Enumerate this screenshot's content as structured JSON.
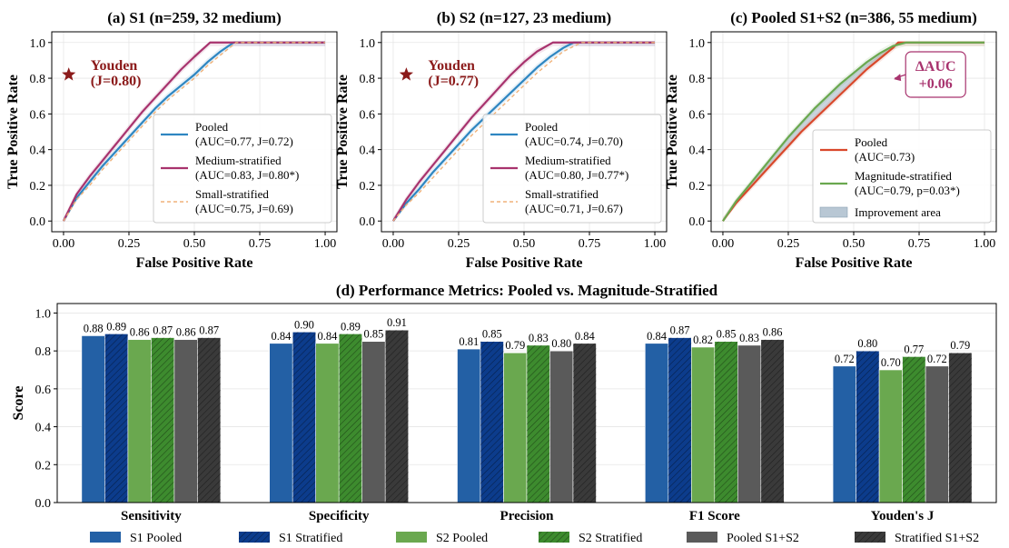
{
  "chart_data": [
    {
      "type": "line",
      "title": "(a) S1 (n=259, 32 medium)",
      "xlabel": "False Positive Rate",
      "ylabel": "True Positive Rate",
      "xlim": [
        0,
        1
      ],
      "ylim": [
        0,
        1
      ],
      "xticks": [
        "0.00",
        "0.25",
        "0.50",
        "0.75",
        "1.00"
      ],
      "yticks": [
        "0.0",
        "0.2",
        "0.4",
        "0.6",
        "0.8",
        "1.0"
      ],
      "grid": true,
      "legend_position": "lower-right",
      "series": [
        {
          "name": "Pooled",
          "legend_detail": "(AUC=0.77, J=0.72)",
          "color": "#2e86c1",
          "style": "solid",
          "x": [
            0,
            0.05,
            0.1,
            0.15,
            0.2,
            0.25,
            0.3,
            0.35,
            0.4,
            0.45,
            0.5,
            0.55,
            0.6,
            0.65,
            0.7,
            1.0
          ],
          "y": [
            0,
            0.13,
            0.22,
            0.31,
            0.39,
            0.47,
            0.55,
            0.63,
            0.7,
            0.76,
            0.82,
            0.89,
            0.95,
            1.0,
            1.0,
            1.0
          ]
        },
        {
          "name": "Medium-stratified",
          "legend_detail": "(AUC=0.83, J=0.80*)",
          "color": "#a8336e",
          "style": "solid",
          "x": [
            0,
            0.05,
            0.1,
            0.15,
            0.2,
            0.25,
            0.3,
            0.35,
            0.4,
            0.45,
            0.5,
            0.56,
            0.6,
            0.65,
            1.0
          ],
          "y": [
            0,
            0.15,
            0.25,
            0.34,
            0.43,
            0.52,
            0.61,
            0.69,
            0.77,
            0.85,
            0.92,
            1.0,
            1.0,
            1.0,
            1.0
          ]
        },
        {
          "name": "Small-stratified",
          "legend_detail": "(AUC=0.75, J=0.69)",
          "color": "#f0b27a",
          "style": "dashed",
          "x": [
            0,
            0.05,
            0.1,
            0.15,
            0.2,
            0.25,
            0.3,
            0.35,
            0.4,
            0.45,
            0.5,
            0.55,
            0.6,
            0.66,
            1.0
          ],
          "y": [
            0,
            0.12,
            0.2,
            0.29,
            0.37,
            0.45,
            0.53,
            0.61,
            0.68,
            0.74,
            0.8,
            0.87,
            0.93,
            1.0,
            1.0
          ]
        }
      ],
      "annotation": {
        "marker": "star",
        "label": "Youden",
        "value": "(J=0.80)",
        "color": "#8b1a1a",
        "x": 0.02,
        "y": 0.82
      }
    },
    {
      "type": "line",
      "title": "(b) S2 (n=127, 23 medium)",
      "xlabel": "False Positive Rate",
      "ylabel": "True Positive Rate",
      "xlim": [
        0,
        1
      ],
      "ylim": [
        0,
        1
      ],
      "xticks": [
        "0.00",
        "0.25",
        "0.50",
        "0.75",
        "1.00"
      ],
      "yticks": [
        "0.0",
        "0.2",
        "0.4",
        "0.6",
        "0.8",
        "1.0"
      ],
      "grid": true,
      "legend_position": "lower-right",
      "series": [
        {
          "name": "Pooled",
          "legend_detail": "(AUC=0.74, J=0.70)",
          "color": "#2e86c1",
          "style": "solid",
          "x": [
            0,
            0.05,
            0.1,
            0.15,
            0.2,
            0.25,
            0.3,
            0.35,
            0.4,
            0.45,
            0.5,
            0.55,
            0.6,
            0.65,
            0.69,
            1.0
          ],
          "y": [
            0,
            0.1,
            0.18,
            0.27,
            0.35,
            0.43,
            0.51,
            0.58,
            0.65,
            0.72,
            0.79,
            0.86,
            0.92,
            0.97,
            1.0,
            1.0
          ]
        },
        {
          "name": "Medium-stratified",
          "legend_detail": "(AUC=0.80, J=0.77*)",
          "color": "#a8336e",
          "style": "solid",
          "x": [
            0,
            0.05,
            0.1,
            0.15,
            0.2,
            0.25,
            0.3,
            0.35,
            0.4,
            0.45,
            0.5,
            0.55,
            0.61,
            1.0
          ],
          "y": [
            0,
            0.12,
            0.22,
            0.31,
            0.4,
            0.49,
            0.58,
            0.66,
            0.74,
            0.82,
            0.89,
            0.95,
            1.0,
            1.0
          ]
        },
        {
          "name": "Small-stratified",
          "legend_detail": "(AUC=0.71, J=0.67)",
          "color": "#f0b27a",
          "style": "dashed",
          "x": [
            0,
            0.05,
            0.1,
            0.15,
            0.2,
            0.25,
            0.3,
            0.35,
            0.4,
            0.45,
            0.5,
            0.55,
            0.6,
            0.65,
            0.72,
            1.0
          ],
          "y": [
            0,
            0.09,
            0.16,
            0.24,
            0.32,
            0.4,
            0.48,
            0.55,
            0.62,
            0.69,
            0.76,
            0.83,
            0.89,
            0.95,
            1.0,
            1.0
          ]
        }
      ],
      "annotation": {
        "marker": "star",
        "label": "Youden",
        "value": "(J=0.77)",
        "color": "#8b1a1a",
        "x": 0.05,
        "y": 0.82
      }
    },
    {
      "type": "line",
      "title": "(c) Pooled S1+S2 (n=386, 55 medium)",
      "xlabel": "False Positive Rate",
      "ylabel": "True Positive Rate",
      "xlim": [
        0,
        1
      ],
      "ylim": [
        0,
        1
      ],
      "xticks": [
        "0.00",
        "0.25",
        "0.50",
        "0.75",
        "1.00"
      ],
      "yticks": [
        "0.0",
        "0.2",
        "0.4",
        "0.6",
        "0.8",
        "1.0"
      ],
      "grid": true,
      "legend_position": "lower-right",
      "series": [
        {
          "name": "Pooled",
          "legend_detail": "(AUC=0.73)",
          "color": "#d9482b",
          "style": "solid",
          "x": [
            0,
            0.05,
            0.1,
            0.15,
            0.2,
            0.25,
            0.3,
            0.35,
            0.4,
            0.45,
            0.5,
            0.55,
            0.6,
            0.65,
            0.67,
            1.0
          ],
          "y": [
            0,
            0.1,
            0.18,
            0.26,
            0.34,
            0.42,
            0.5,
            0.57,
            0.64,
            0.71,
            0.78,
            0.85,
            0.91,
            0.97,
            1.0,
            1.0
          ]
        },
        {
          "name": "Magnitude-stratified",
          "legend_detail": "(AUC=0.79, p=0.03*)",
          "color": "#6aa84f",
          "style": "solid",
          "x": [
            0,
            0.05,
            0.1,
            0.15,
            0.2,
            0.25,
            0.3,
            0.35,
            0.4,
            0.45,
            0.5,
            0.55,
            0.6,
            0.65,
            0.7,
            0.75,
            0.8,
            1.0
          ],
          "y": [
            0,
            0.11,
            0.2,
            0.29,
            0.38,
            0.47,
            0.55,
            0.63,
            0.7,
            0.77,
            0.83,
            0.89,
            0.94,
            0.98,
            1.0,
            1.0,
            1.0,
            1.0
          ]
        }
      ],
      "fill_between": {
        "name": "Improvement area",
        "color": "#b8c7d4"
      },
      "annotation": {
        "marker": "arrow",
        "label": "ΔAUC",
        "value": "+0.06",
        "color": "#a8336e",
        "x": 0.65,
        "y": 0.82
      }
    },
    {
      "type": "bar",
      "title": "(d) Performance Metrics: Pooled vs. Magnitude-Stratified",
      "xlabel": "",
      "ylabel": "Score",
      "ylim": [
        0,
        1.05
      ],
      "yticks": [
        "0.0",
        "0.2",
        "0.4",
        "0.6",
        "0.8",
        "1.0"
      ],
      "grid": true,
      "legend_position": "bottom",
      "categories": [
        "Sensitivity",
        "Specificity",
        "Precision",
        "F1 Score",
        "Youden's J"
      ],
      "series": [
        {
          "name": "S1 Pooled",
          "color": "#2360a5",
          "hatch": false,
          "values": [
            0.88,
            0.84,
            0.81,
            0.84,
            0.72
          ],
          "labels": [
            "0.88",
            "0.84",
            "0.81",
            "0.84",
            "0.72"
          ]
        },
        {
          "name": "S1 Stratified",
          "color": "#0c3c8c",
          "hatch": true,
          "values": [
            0.89,
            0.9,
            0.85,
            0.87,
            0.8
          ],
          "labels": [
            "0.89",
            "0.90",
            "0.85",
            "0.87",
            "0.80"
          ]
        },
        {
          "name": "S2 Pooled",
          "color": "#6aa84f",
          "hatch": false,
          "values": [
            0.86,
            0.84,
            0.79,
            0.82,
            0.7
          ],
          "labels": [
            "0.86",
            "0.84",
            "0.79",
            "0.82",
            "0.70"
          ]
        },
        {
          "name": "S2 Stratified",
          "color": "#3d8b2e",
          "hatch": true,
          "values": [
            0.87,
            0.89,
            0.83,
            0.85,
            0.77
          ],
          "labels": [
            "0.87",
            "0.89",
            "0.83",
            "0.85",
            "0.77"
          ]
        },
        {
          "name": "Pooled S1+S2",
          "color": "#5a5a5a",
          "hatch": false,
          "values": [
            0.86,
            0.85,
            0.8,
            0.83,
            0.72
          ],
          "labels": [
            "0.86",
            "0.85",
            "0.80",
            "0.83",
            "0.72"
          ]
        },
        {
          "name": "Stratified S1+S2",
          "color": "#3a3a3a",
          "hatch": true,
          "values": [
            0.87,
            0.91,
            0.84,
            0.86,
            0.79
          ],
          "labels": [
            "0.87",
            "0.91",
            "0.84",
            "0.86",
            "0.79"
          ]
        }
      ]
    }
  ]
}
